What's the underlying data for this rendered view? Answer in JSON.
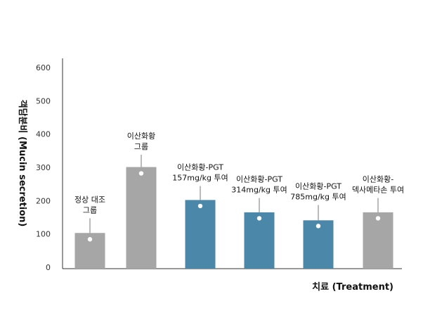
{
  "chart_data": {
    "type": "bar",
    "ylabel": "객담분비 (Mucin secretion)",
    "xlabel": "치료 (Treatment)",
    "ylim": [
      0,
      600
    ],
    "yticks": [
      0,
      100,
      200,
      300,
      400,
      500,
      600
    ],
    "grid": false,
    "categories": [
      [
        "정상 대조",
        "그룹"
      ],
      [
        "이산화황",
        "그룹"
      ],
      [
        "이산화황-PGT",
        "157mg/kg 투여"
      ],
      [
        "이산화황-PGT",
        "314mg/kg 투여"
      ],
      [
        "이산화황-PGT",
        "785mg/kg 투여"
      ],
      [
        "이산화황-",
        "덱사메타손 투여"
      ]
    ],
    "values": [
      103,
      301,
      202,
      165,
      141,
      165
    ],
    "error_upper": [
      147,
      338,
      244,
      208,
      187,
      208
    ],
    "point_values": [
      84,
      282,
      184,
      147,
      124,
      147
    ],
    "colors": [
      "#a6a6a6",
      "#a6a6a6",
      "#4b87a9",
      "#4b87a9",
      "#4b87a9",
      "#a6a6a6"
    ]
  }
}
